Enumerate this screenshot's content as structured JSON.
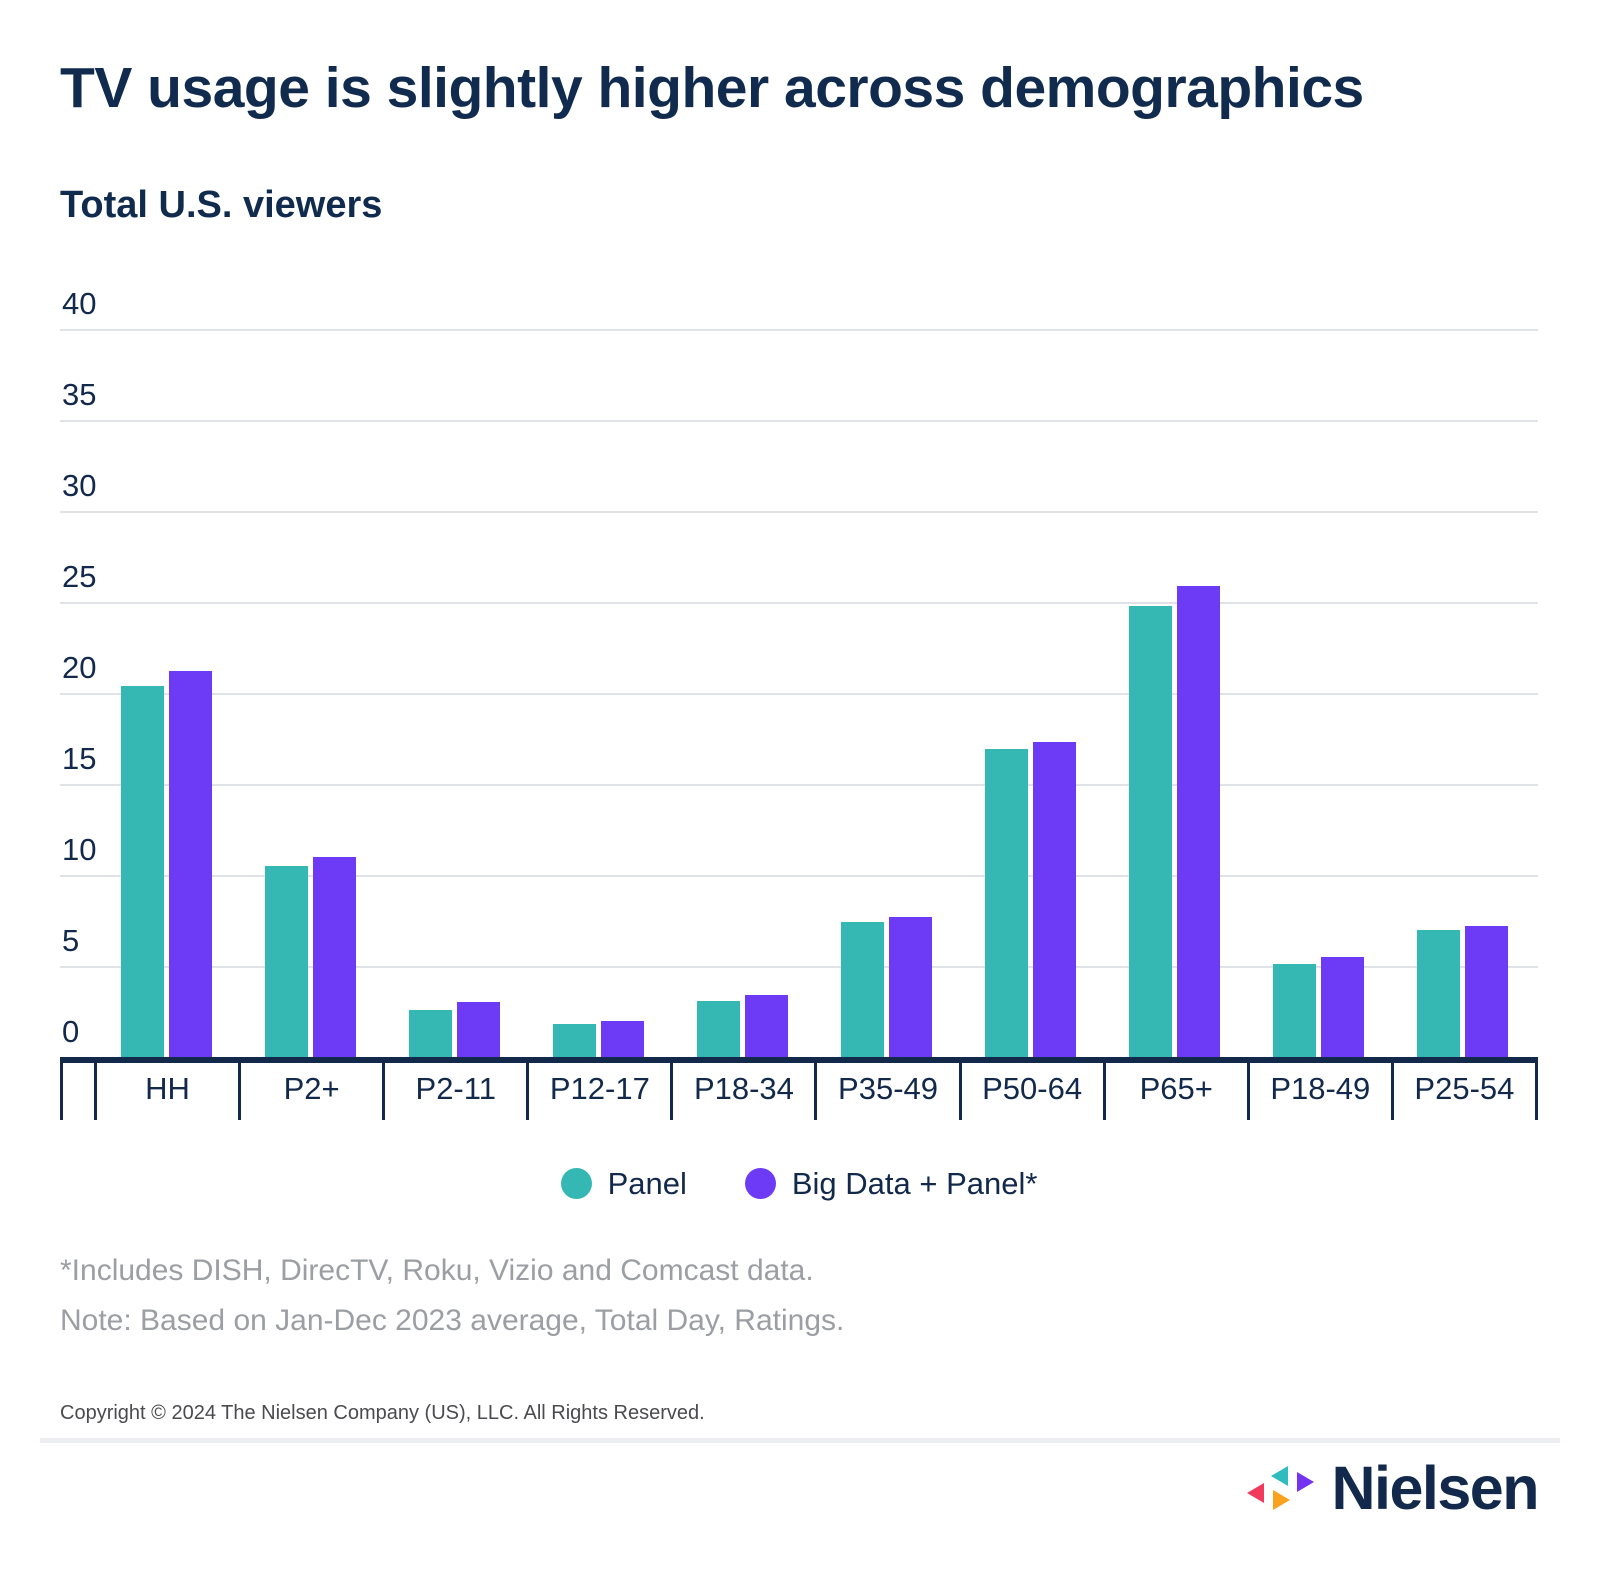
{
  "title": "TV usage is slightly higher across demographics",
  "subtitle": "Total U.S. viewers",
  "chart_data": {
    "type": "bar",
    "categories": [
      "HH",
      "P2+",
      "P2-11",
      "P12-17",
      "P18-34",
      "P35-49",
      "P50-64",
      "P65+",
      "P18-49",
      "P25-54"
    ],
    "series": [
      {
        "name": "Panel",
        "color": "#35b8b4",
        "values": [
          20.4,
          10.5,
          2.6,
          1.8,
          3.1,
          7.4,
          16.9,
          24.8,
          5.1,
          7.0
        ]
      },
      {
        "name": "Big Data + Panel*",
        "color": "#6d3bf5",
        "values": [
          21.2,
          11.0,
          3.0,
          2.0,
          3.4,
          7.7,
          17.3,
          25.9,
          5.5,
          7.2
        ]
      }
    ],
    "ylim": [
      0,
      40
    ],
    "yticks": [
      "0",
      "5",
      "10",
      "15",
      "20",
      "25",
      "30",
      "35",
      "40"
    ],
    "grid": "horizontal",
    "legend_position": "bottom",
    "xlabel": "",
    "ylabel": ""
  },
  "footnotes": {
    "line1": "*Includes DISH, DirecTV, Roku, Vizio and Comcast data.",
    "line2": "Note: Based on Jan-Dec 2023 average, Total Day, Ratings."
  },
  "copyright": "Copyright © 2024 The Nielsen Company (US), LLC. All Rights Reserved.",
  "logo": {
    "text": "Nielsen",
    "mark_colors": {
      "pink": "#f23a5c",
      "teal": "#2fbcbc",
      "orange": "#f9a21d",
      "purple": "#7433f0"
    }
  },
  "colors": {
    "navy_text": "#12294b",
    "gridline": "#dfe2e7",
    "footnote_gray": "#9b9ea3",
    "copyright_gray": "#4b4b4f",
    "divider_gray": "#eceef1",
    "panel_teal": "#35b8b4",
    "bigdata_purple": "#6d3bf5"
  }
}
